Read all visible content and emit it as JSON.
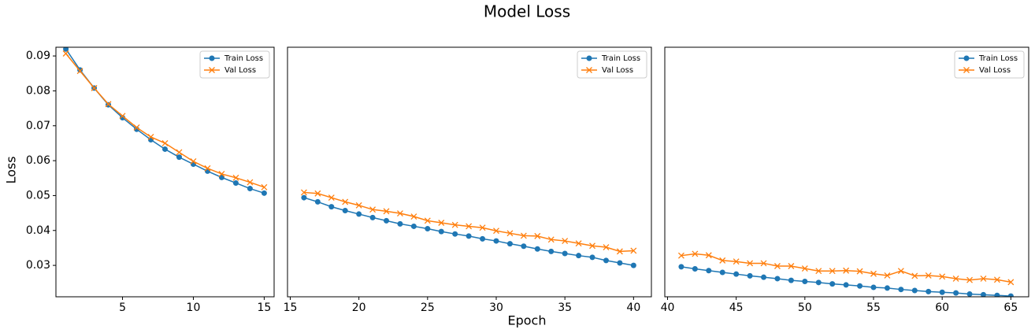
{
  "figure": {
    "title": "Model Loss",
    "x_label": "Epoch",
    "y_label": "Loss"
  },
  "chart_data": [
    {
      "type": "line",
      "x": [
        1,
        2,
        3,
        4,
        5,
        6,
        7,
        8,
        9,
        10,
        11,
        12,
        13,
        14,
        15
      ],
      "series": [
        {
          "name": "Train Loss",
          "color": "#1f77b4",
          "marker": "circle",
          "values": [
            0.092,
            0.086,
            0.0808,
            0.076,
            0.0723,
            0.069,
            0.066,
            0.0633,
            0.061,
            0.059,
            0.057,
            0.0552,
            0.0536,
            0.052,
            0.0507
          ]
        },
        {
          "name": "Val Loss",
          "color": "#ff7f0e",
          "marker": "x",
          "values": [
            0.0907,
            0.0857,
            0.0808,
            0.0762,
            0.0728,
            0.0695,
            0.0668,
            0.065,
            0.0624,
            0.0598,
            0.0578,
            0.0562,
            0.0551,
            0.0538,
            0.0524
          ]
        }
      ],
      "xlim": [
        0.3,
        15.7
      ],
      "xticks": [
        5,
        10,
        15
      ],
      "ylim": [
        0.021,
        0.0925
      ],
      "yticks": [
        0.03,
        0.04,
        0.05,
        0.06,
        0.07,
        0.08,
        0.09
      ],
      "legend": "upper right"
    },
    {
      "type": "line",
      "x": [
        16,
        17,
        18,
        19,
        20,
        21,
        22,
        23,
        24,
        25,
        26,
        27,
        28,
        29,
        30,
        31,
        32,
        33,
        34,
        35,
        36,
        37,
        38,
        39,
        40
      ],
      "series": [
        {
          "name": "Train Loss",
          "color": "#1f77b4",
          "marker": "circle",
          "values": [
            0.0494,
            0.0482,
            0.0468,
            0.0457,
            0.0447,
            0.0437,
            0.0428,
            0.0419,
            0.0412,
            0.0405,
            0.0397,
            0.039,
            0.0384,
            0.0376,
            0.037,
            0.0362,
            0.0355,
            0.0347,
            0.034,
            0.0334,
            0.0328,
            0.0323,
            0.0314,
            0.0307,
            0.03
          ]
        },
        {
          "name": "Val Loss",
          "color": "#ff7f0e",
          "marker": "x",
          "values": [
            0.0509,
            0.0506,
            0.0494,
            0.0482,
            0.0472,
            0.046,
            0.0455,
            0.0449,
            0.044,
            0.0428,
            0.0422,
            0.0416,
            0.0412,
            0.0408,
            0.0399,
            0.0392,
            0.0385,
            0.0384,
            0.0374,
            0.037,
            0.0363,
            0.0356,
            0.0352,
            0.034,
            0.0342
          ]
        }
      ],
      "xlim": [
        14.8,
        41.3
      ],
      "xticks": [
        15,
        20,
        25,
        30,
        35,
        40
      ],
      "ylim": [
        0.021,
        0.0925
      ],
      "legend": "upper right"
    },
    {
      "type": "line",
      "x": [
        41,
        42,
        43,
        44,
        45,
        46,
        47,
        48,
        49,
        50,
        51,
        52,
        53,
        54,
        55,
        56,
        57,
        58,
        59,
        60,
        61,
        62,
        63,
        64,
        65
      ],
      "series": [
        {
          "name": "Train Loss",
          "color": "#1f77b4",
          "marker": "circle",
          "values": [
            0.0296,
            0.029,
            0.0285,
            0.028,
            0.0275,
            0.027,
            0.0266,
            0.0262,
            0.0257,
            0.0254,
            0.0251,
            0.0247,
            0.0244,
            0.0241,
            0.0237,
            0.0235,
            0.0231,
            0.0228,
            0.0225,
            0.0223,
            0.0221,
            0.0218,
            0.0216,
            0.0214,
            0.0212
          ]
        },
        {
          "name": "Val Loss",
          "color": "#ff7f0e",
          "marker": "x",
          "values": [
            0.0328,
            0.0333,
            0.0329,
            0.0314,
            0.0311,
            0.0306,
            0.0306,
            0.0298,
            0.0298,
            0.0291,
            0.0284,
            0.0284,
            0.0285,
            0.0283,
            0.0276,
            0.0271,
            0.0284,
            0.027,
            0.0271,
            0.0268,
            0.0262,
            0.0258,
            0.0262,
            0.0259,
            0.0252
          ]
        }
      ],
      "xlim": [
        39.8,
        66.3
      ],
      "xticks": [
        40,
        45,
        50,
        55,
        60,
        65
      ],
      "ylim": [
        0.021,
        0.0925
      ],
      "legend": "upper right"
    }
  ]
}
